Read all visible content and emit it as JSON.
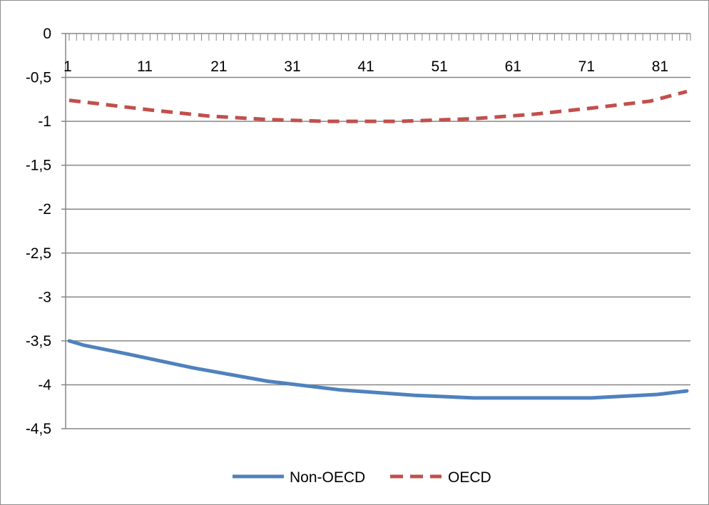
{
  "chart_data": {
    "type": "line",
    "title": "",
    "xlabel": "",
    "ylabel": "",
    "x_range": [
      1,
      85
    ],
    "x_tick_labels": [
      "1",
      "11",
      "21",
      "31",
      "41",
      "51",
      "61",
      "71",
      "81"
    ],
    "y_ticks": [
      0,
      -0.5,
      -1,
      -1.5,
      -2,
      -2.5,
      -3,
      -3.5,
      -4,
      -4.5
    ],
    "y_tick_labels": [
      "0",
      "-0,5",
      "-1",
      "-1,5",
      "-2",
      "-2,5",
      "-3",
      "-3,5",
      "-4",
      "-4,5"
    ],
    "ylim": [
      -4.5,
      0
    ],
    "grid": "horizontal",
    "legend_position": "bottom",
    "series": [
      {
        "name": "Non-OECD",
        "color": "#4f81bd",
        "dash": "solid",
        "points": [
          [
            1,
            -3.5
          ],
          [
            3,
            -3.55
          ],
          [
            9,
            -3.65
          ],
          [
            18,
            -3.81
          ],
          [
            28,
            -3.96
          ],
          [
            38,
            -4.06
          ],
          [
            48,
            -4.12
          ],
          [
            56,
            -4.15
          ],
          [
            72,
            -4.15
          ],
          [
            81,
            -4.11
          ],
          [
            85,
            -4.07
          ]
        ]
      },
      {
        "name": "OECD",
        "color": "#c0504d",
        "dash": "dashed",
        "points": [
          [
            1,
            -0.76
          ],
          [
            6,
            -0.81
          ],
          [
            12,
            -0.87
          ],
          [
            20,
            -0.94
          ],
          [
            28,
            -0.98
          ],
          [
            36,
            -1.0
          ],
          [
            46,
            -1.0
          ],
          [
            56,
            -0.97
          ],
          [
            64,
            -0.92
          ],
          [
            72,
            -0.85
          ],
          [
            80,
            -0.77
          ],
          [
            85,
            -0.66
          ]
        ]
      }
    ]
  }
}
